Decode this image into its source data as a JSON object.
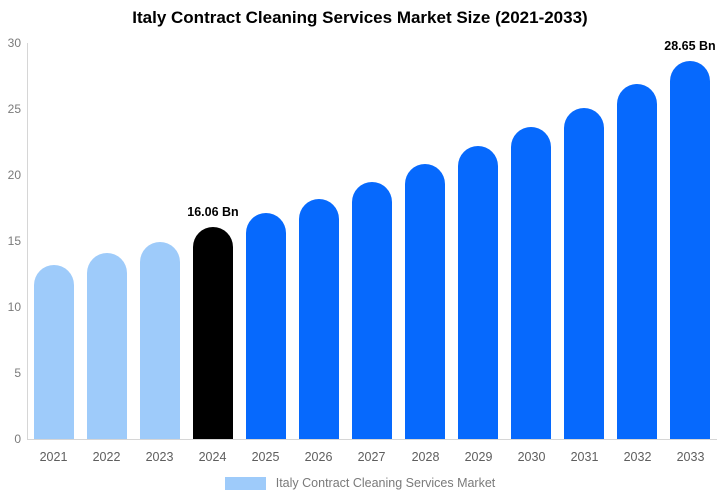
{
  "title": "Italy Contract Cleaning Services Market Size (2021-2033)",
  "chart_data": {
    "type": "bar",
    "title": "Italy Contract Cleaning Services Market Size (2021-2033)",
    "categories": [
      "2021",
      "2022",
      "2023",
      "2024",
      "2025",
      "2026",
      "2027",
      "2028",
      "2029",
      "2030",
      "2031",
      "2032",
      "2033"
    ],
    "values": [
      13.2,
      14.1,
      14.9,
      16.06,
      17.1,
      18.2,
      19.5,
      20.8,
      22.2,
      23.6,
      25.1,
      26.9,
      28.65
    ],
    "series_name": "Italy Contract Cleaning Services Market",
    "xlabel": "",
    "ylabel": "",
    "ylim": [
      0,
      30
    ],
    "yticks": [
      0,
      5,
      10,
      15,
      20,
      25,
      30
    ],
    "grid": false,
    "legend_position": "bottom",
    "bar_colors": [
      "#9ECBFA",
      "#9ECBFA",
      "#9ECBFA",
      "#000000",
      "#0669FD",
      "#0669FD",
      "#0669FD",
      "#0669FD",
      "#0669FD",
      "#0669FD",
      "#0669FD",
      "#0669FD",
      "#0669FD"
    ],
    "annotations": [
      {
        "category": "2024",
        "text": "16.06 Bn"
      },
      {
        "category": "2033",
        "text": "28.65 Bn"
      }
    ]
  },
  "legend": {
    "label": "Italy Contract Cleaning Services Market",
    "swatch_color": "#9ECBFA"
  },
  "colors": {
    "historical_bar": "#9ECBFA",
    "current_year_bar": "#000000",
    "forecast_bar": "#0669FD",
    "axis": "#D6D6D6",
    "tick_text": "#7A7A7A"
  }
}
